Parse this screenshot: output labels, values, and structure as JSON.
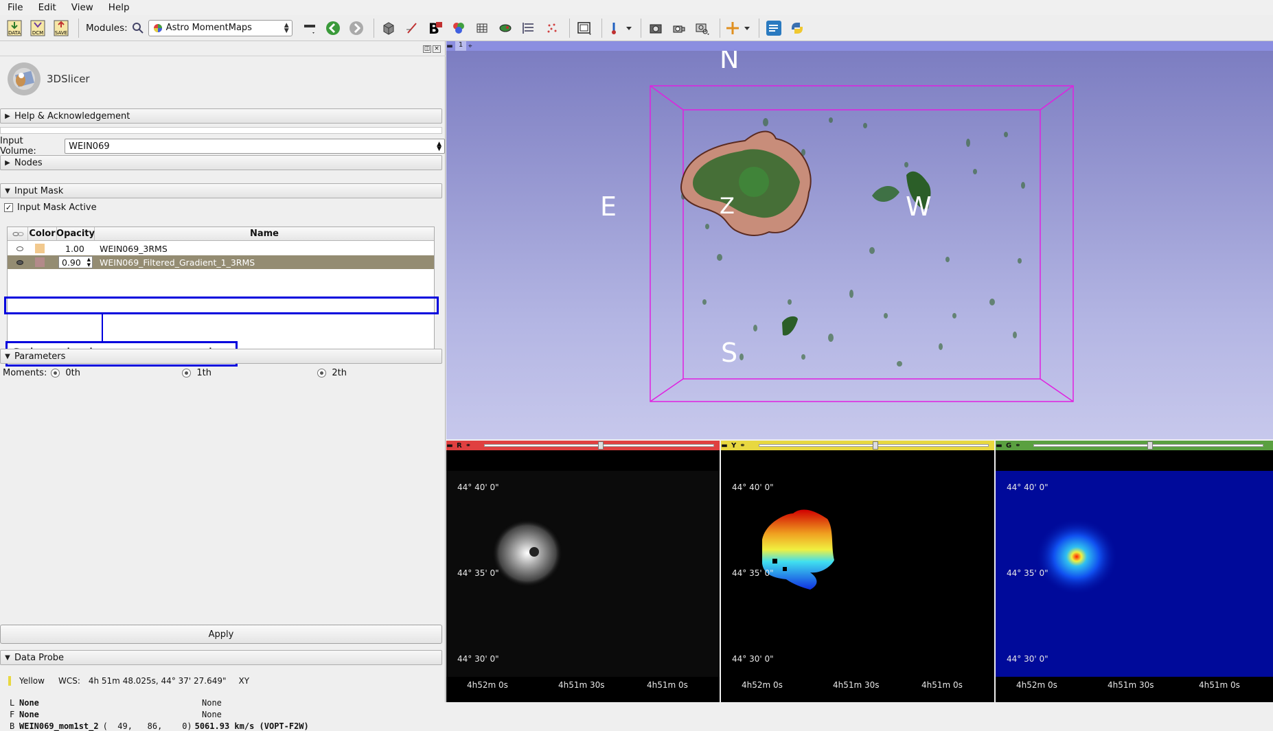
{
  "menubar": {
    "items": [
      "File",
      "Edit",
      "View",
      "Help"
    ]
  },
  "toolbar": {
    "icons": {
      "data": "DATA",
      "dcm": "DCM",
      "save": "SAVE"
    },
    "modules_label": "Modules:",
    "module_selected": "Astro MomentMaps"
  },
  "app": {
    "logo_text": "3DSlicer"
  },
  "panel": {
    "help_section": "Help & Acknowledgement",
    "input_volume_label": "Input Volume:",
    "input_volume_value": "WEIN069",
    "nodes_section": "Nodes",
    "input_mask_section": "Input Mask",
    "input_mask_active_label": "Input Mask Active",
    "input_mask_active_checked": true,
    "table": {
      "headers": {
        "color": "Color",
        "opacity": "Opacity",
        "name": "Name"
      },
      "rows": [
        {
          "opacity": "1.00",
          "name": "WEIN069_3RMS",
          "color": "#f2c98e",
          "visible": false,
          "selected": false
        },
        {
          "opacity": "0.90",
          "name": "WEIN069_Filtered_Gradient_1_3RMS",
          "color": "#b38a8a",
          "visible": true,
          "selected": true
        }
      ]
    },
    "callout": "Select the input segmentation",
    "parameters_section": "Parameters",
    "moments_label": "Moments:",
    "moments": [
      "0th",
      "1th",
      "2th"
    ],
    "apply_button": "Apply",
    "data_probe_section": "Data Probe",
    "probe": {
      "view": "Yellow",
      "wcs_label": "WCS:",
      "wcs_value": "4h 51m 48.025s, 44° 37' 27.649\"",
      "orientation": "XY",
      "lines": [
        {
          "key": "L",
          "name": "None",
          "value": "None"
        },
        {
          "key": "F",
          "name": "None",
          "value": "None"
        },
        {
          "key": "B",
          "name": "WEIN069_mom1st_2",
          "ijk": "(  49,   86,    0)",
          "value": "5061.93 km/s (VOPT-F2W)"
        }
      ]
    }
  },
  "view3d": {
    "number": "1",
    "compass": {
      "n": "N",
      "s": "S",
      "e": "E",
      "w": "W",
      "z": "Z"
    }
  },
  "slices": [
    {
      "label": "R",
      "color": "#e04040"
    },
    {
      "label": "Y",
      "color": "#e8d840"
    },
    {
      "label": "G",
      "color": "#5aa040"
    }
  ],
  "slice_coords": {
    "dec": [
      "44° 40' 0\"",
      "44° 35' 0\"",
      "44° 30' 0\""
    ],
    "ra": [
      "4h52m 0s",
      "4h51m 30s",
      "4h51m 0s"
    ]
  }
}
